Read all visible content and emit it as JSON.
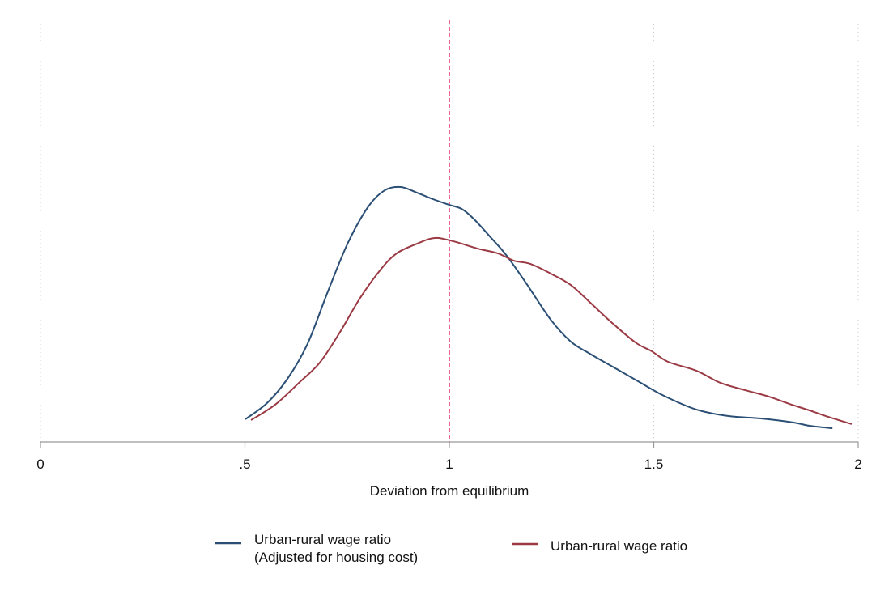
{
  "chart_data": {
    "type": "line",
    "title": "",
    "xlabel": "Deviation from equilibrium",
    "ylabel": "",
    "xlim": [
      0,
      2
    ],
    "ylim": [
      0,
      3.64
    ],
    "xticks": [
      0,
      0.5,
      1,
      1.5,
      2
    ],
    "xtick_labels": [
      "0",
      ".5",
      "1",
      "1.5",
      "2"
    ],
    "grid": "vertical dotted",
    "reference_line": {
      "x": 1,
      "style": "dashed",
      "color": "#e8336e"
    },
    "legend_position": "bottom",
    "series": [
      {
        "name": "Urban-rural wage ratio",
        "name_line2": "(Adjusted for housing cost)",
        "color": "#2b4f75",
        "x": [
          0.501,
          0.554,
          0.604,
          0.653,
          0.703,
          0.752,
          0.802,
          0.842,
          0.881,
          0.921,
          0.96,
          1.0,
          1.03,
          1.059,
          1.099,
          1.139,
          1.188,
          1.248,
          1.297,
          1.347,
          1.406,
          1.465,
          1.525,
          1.604,
          1.683,
          1.762,
          1.842,
          1.881,
          1.937
        ],
        "y": [
          0.187,
          0.32,
          0.52,
          0.807,
          1.24,
          1.64,
          1.94,
          2.073,
          2.1,
          2.053,
          2.0,
          1.953,
          1.92,
          1.84,
          1.693,
          1.54,
          1.307,
          1.007,
          0.827,
          0.72,
          0.607,
          0.493,
          0.38,
          0.267,
          0.213,
          0.193,
          0.16,
          0.133,
          0.113
        ]
      },
      {
        "name": "Urban-rural wage ratio",
        "color": "#9b3a44",
        "x": [
          0.515,
          0.574,
          0.634,
          0.683,
          0.733,
          0.782,
          0.832,
          0.871,
          0.921,
          0.964,
          1.01,
          1.069,
          1.119,
          1.158,
          1.198,
          1.248,
          1.297,
          1.347,
          1.396,
          1.455,
          1.495,
          1.535,
          1.604,
          1.663,
          1.723,
          1.782,
          1.832,
          1.881,
          1.921,
          1.984
        ],
        "y": [
          0.18,
          0.307,
          0.493,
          0.653,
          0.907,
          1.187,
          1.42,
          1.553,
          1.633,
          1.68,
          1.653,
          1.593,
          1.553,
          1.493,
          1.467,
          1.387,
          1.293,
          1.14,
          0.987,
          0.82,
          0.747,
          0.66,
          0.587,
          0.487,
          0.427,
          0.373,
          0.313,
          0.26,
          0.213,
          0.147
        ]
      }
    ]
  }
}
